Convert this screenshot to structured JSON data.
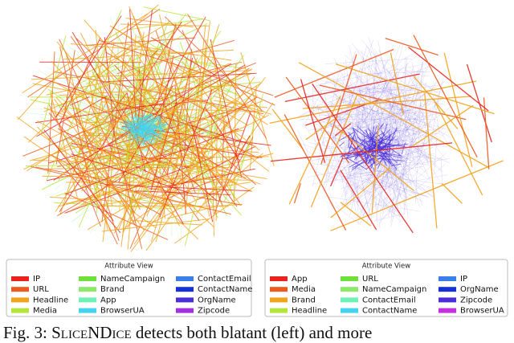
{
  "figure": {
    "panels": [
      {
        "legend": {
          "title": "Attribute View",
          "entries": [
            {
              "label": "IP",
              "color": "#e8231d"
            },
            {
              "label": "URL",
              "color": "#ec5a1f"
            },
            {
              "label": "Headline",
              "color": "#f2a31d"
            },
            {
              "label": "Media",
              "color": "#b6e53a"
            },
            {
              "label": "NameCampaign",
              "color": "#6fe03a"
            },
            {
              "label": "Brand",
              "color": "#8ee86a"
            },
            {
              "label": "App",
              "color": "#6ff0b4"
            },
            {
              "label": "BrowserUA",
              "color": "#44d3ee"
            },
            {
              "label": "ContactEmail",
              "color": "#3a7fe8"
            },
            {
              "label": "ContactName",
              "color": "#1330d9"
            },
            {
              "label": "OrgName",
              "color": "#4a2fd8"
            },
            {
              "label": "Zipcode",
              "color": "#a32fe0"
            }
          ]
        }
      },
      {
        "legend": {
          "title": "Attribute View",
          "entries": [
            {
              "label": "App",
              "color": "#e8231d"
            },
            {
              "label": "Media",
              "color": "#ec5a1f"
            },
            {
              "label": "Brand",
              "color": "#f2a31d"
            },
            {
              "label": "Headline",
              "color": "#b6e53a"
            },
            {
              "label": "URL",
              "color": "#6fe03a"
            },
            {
              "label": "NameCampaign",
              "color": "#8ee86a"
            },
            {
              "label": "ContactEmail",
              "color": "#6ff0b4"
            },
            {
              "label": "ContactName",
              "color": "#44d3ee"
            },
            {
              "label": "IP",
              "color": "#3a7fe8"
            },
            {
              "label": "OrgName",
              "color": "#1330d9"
            },
            {
              "label": "Zipcode",
              "color": "#4a2fd8"
            },
            {
              "label": "BrowserUA",
              "color": "#c42fe0"
            }
          ]
        }
      }
    ],
    "caption": {
      "prefix": "Fig. 3:",
      "name": "SliceNDice",
      "text": "detects both blatant (left) and more"
    }
  }
}
